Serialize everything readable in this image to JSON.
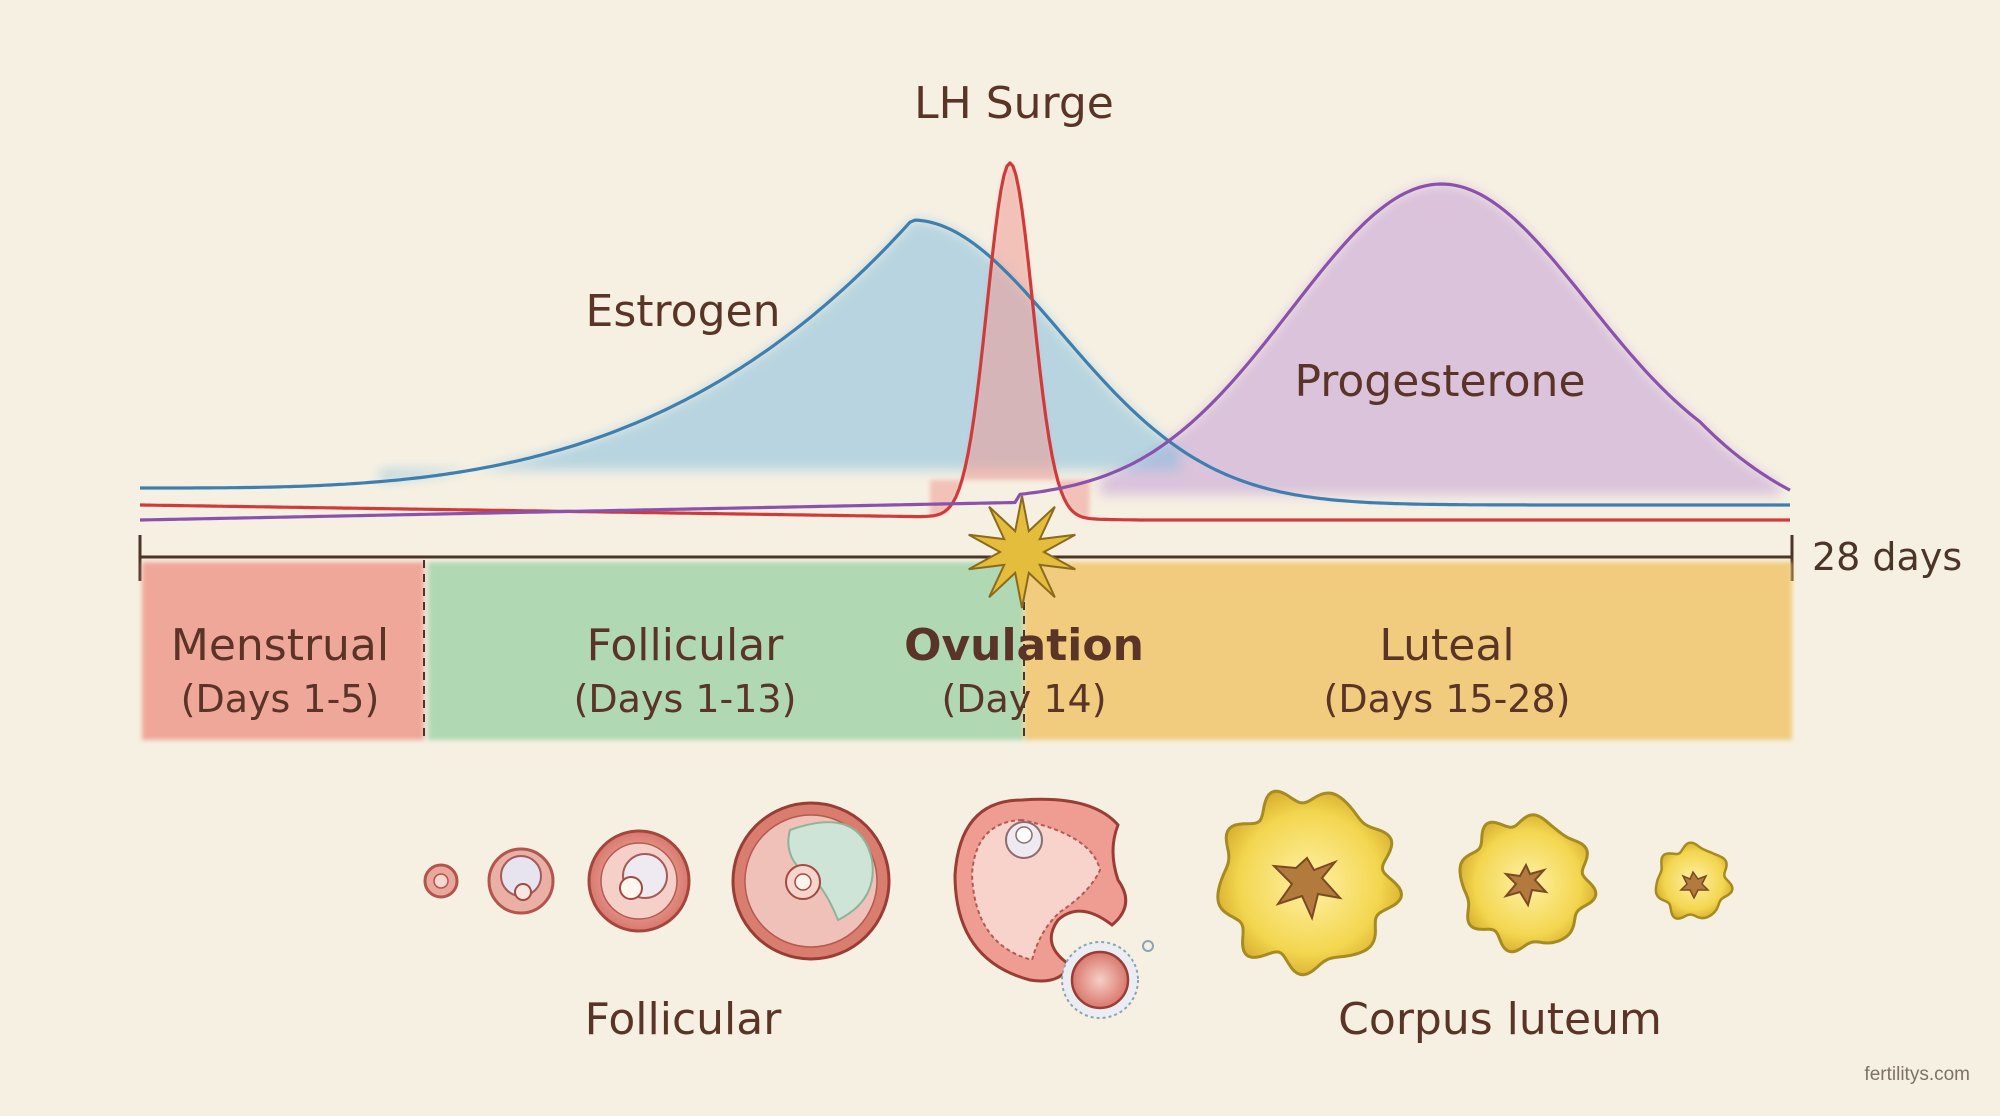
{
  "hormones": {
    "lh_label": "LH Surge",
    "estrogen_label": "Estrogen",
    "progesterone_label": "Progesterone",
    "colors": {
      "estrogen": "#3f7fb0",
      "lh": "#cf3b3b",
      "progesterone": "#8a52ad"
    }
  },
  "timeline": {
    "end_label": "28 days"
  },
  "phases": [
    {
      "name": "Menstrual",
      "days": "(Days 1-5)",
      "color": "#ef9a8c"
    },
    {
      "name": "Follicular",
      "days": "(Days 1-13)",
      "color": "#9fd2a7"
    },
    {
      "name": "Ovulation",
      "days": "(Day 14)",
      "color": "#f0c97d"
    },
    {
      "name": "Luteal",
      "days": "(Days 15-28)",
      "color": "#f0c56d"
    }
  ],
  "stages": {
    "follicular_label": "Follicular",
    "corpus_luteum_label": "Corpus luteum"
  },
  "watermark": "fertilitys.com"
}
